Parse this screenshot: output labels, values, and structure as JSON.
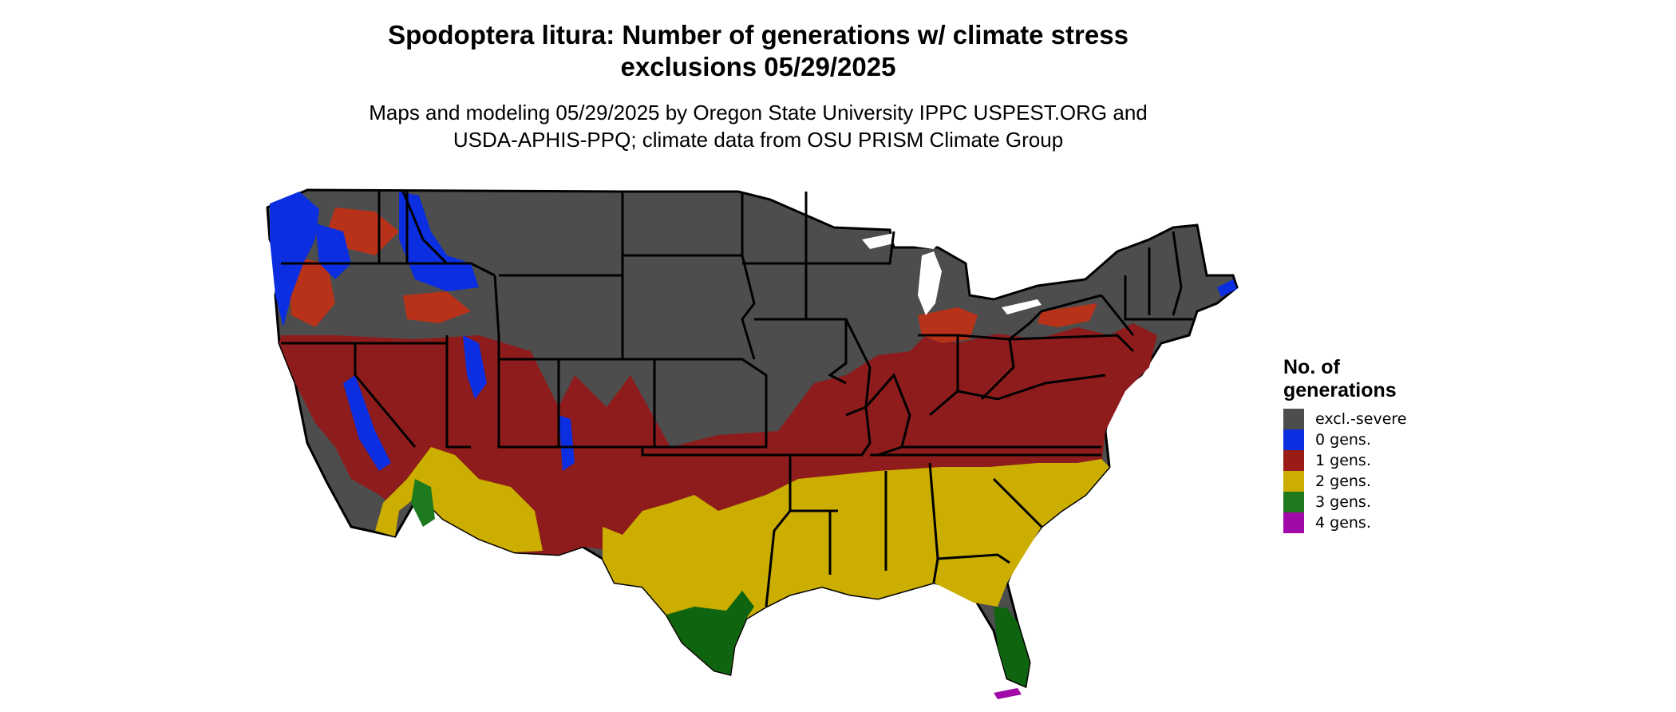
{
  "title_line1": "Spodoptera litura: Number of generations w/ climate stress",
  "title_line2": "exclusions 05/29/2025",
  "subtitle_line1": "Maps and modeling 05/29/2025 by Oregon State University IPPC USPEST.ORG and",
  "subtitle_line2": "USDA-APHIS-PPQ; climate data from OSU PRISM Climate Group",
  "legend": {
    "title_line1": "No. of",
    "title_line2": "generations",
    "items": [
      {
        "label": "excl.-severe",
        "color": "#4d4d4d"
      },
      {
        "label": "0 gens.",
        "color": "#0a2ee0"
      },
      {
        "label": "1 gens.",
        "color": "#9b1c16"
      },
      {
        "label": "2 gens.",
        "color": "#ccae00"
      },
      {
        "label": "3 gens.",
        "color": "#1e7a1e"
      },
      {
        "label": "4 gens.",
        "color": "#a00aa8"
      }
    ]
  },
  "colors": {
    "excluded": "#4d4d4d",
    "zero": "#0a2ee0",
    "one": "#8e1c1c",
    "one_light": "#b8321a",
    "two": "#ccae00",
    "three": "#0f6410",
    "four": "#a00aa8",
    "border": "#000000"
  }
}
